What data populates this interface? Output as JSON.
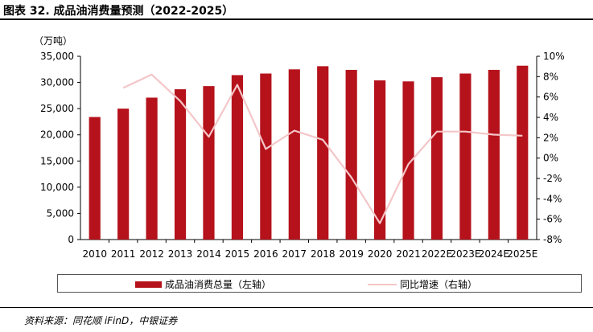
{
  "header": {
    "title": "图表 32. 成品油消费量预测（2022-2025）"
  },
  "footer": {
    "source": "资料来源：同花顺 iFinD，中银证券"
  },
  "colors": {
    "bar": "#b5121b",
    "line": "#f4c6c8"
  },
  "chart_data": {
    "type": "bar",
    "categories": [
      "2010",
      "2011",
      "2012",
      "2013",
      "2014",
      "2015",
      "2016",
      "2017",
      "2018",
      "2019",
      "2020",
      "2021",
      "2022E",
      "2023E",
      "2024E",
      "2025E"
    ],
    "series": [
      {
        "name": "成品油消费总量（左轴）",
        "type": "bar",
        "axis": "left",
        "values": [
          23400,
          25000,
          27100,
          28700,
          29300,
          31400,
          31700,
          32500,
          33100,
          32400,
          30400,
          30200,
          31000,
          31700,
          32400,
          33200
        ]
      },
      {
        "name": "同比增速（右轴）",
        "type": "line",
        "axis": "right",
        "values": [
          null,
          6.9,
          8.2,
          5.6,
          2.1,
          7.2,
          0.9,
          2.7,
          1.8,
          -1.9,
          -6.4,
          -0.6,
          2.6,
          2.6,
          2.3,
          2.2
        ]
      }
    ],
    "y_left": {
      "unit": "（万吨）",
      "lim": [
        0,
        35000
      ],
      "ticks": [
        "0",
        "5,000",
        "10,000",
        "15,000",
        "20,000",
        "25,000",
        "30,000",
        "35,000"
      ]
    },
    "y_right": {
      "lim": [
        -8,
        10
      ],
      "ticks": [
        "-8%",
        "-6%",
        "-4%",
        "-2%",
        "0%",
        "2%",
        "4%",
        "6%",
        "8%",
        "10%"
      ]
    },
    "grid": false,
    "legend_position": "bottom"
  }
}
